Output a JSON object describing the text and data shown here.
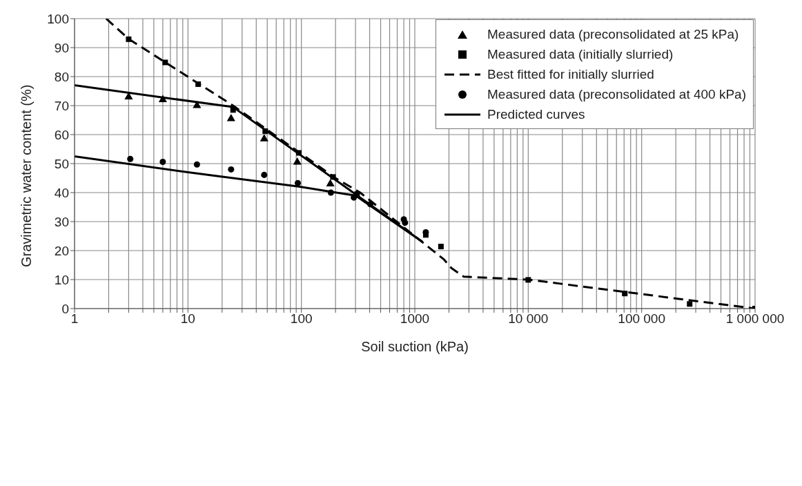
{
  "chart_data": {
    "type": "scatter",
    "xlabel": "Soil suction (kPa)",
    "ylabel": "Gravimetric water content (%)",
    "log": "x",
    "xlim": [
      1,
      1000000
    ],
    "ylim": [
      0,
      100
    ],
    "xticks": [
      1,
      {
        "value": 2,
        "label": null
      },
      {
        "value": 3,
        "label": null
      },
      {
        "value": 4,
        "label": null
      },
      {
        "value": 5,
        "label": null
      },
      {
        "value": 6,
        "label": null
      },
      {
        "value": 7,
        "label": null
      },
      {
        "value": 8,
        "label": null
      },
      {
        "value": 9,
        "label": null
      },
      10,
      {
        "value": 20,
        "label": null
      },
      {
        "value": 30,
        "label": null
      },
      {
        "value": 40,
        "label": null
      },
      {
        "value": 50,
        "label": null
      },
      {
        "value": 60,
        "label": null
      },
      {
        "value": 70,
        "label": null
      },
      {
        "value": 80,
        "label": null
      },
      {
        "value": 90,
        "label": null
      },
      100,
      {
        "value": 200,
        "label": null
      },
      {
        "value": 300,
        "label": null
      },
      {
        "value": 400,
        "label": null
      },
      {
        "value": 500,
        "label": null
      },
      {
        "value": 600,
        "label": null
      },
      {
        "value": 700,
        "label": null
      },
      {
        "value": 800,
        "label": null
      },
      {
        "value": 900,
        "label": null
      },
      1000,
      {
        "value": 2000,
        "label": null
      },
      {
        "value": 3000,
        "label": null
      },
      {
        "value": 4000,
        "label": null
      },
      {
        "value": 5000,
        "label": null
      },
      {
        "value": 6000,
        "label": null
      },
      {
        "value": 7000,
        "label": null
      },
      {
        "value": 8000,
        "label": null
      },
      {
        "value": 9000,
        "label": null
      },
      {
        "value": 10000,
        "label": "10 000"
      },
      {
        "value": 20000,
        "label": null
      },
      {
        "value": 30000,
        "label": null
      },
      {
        "value": 40000,
        "label": null
      },
      {
        "value": 50000,
        "label": null
      },
      {
        "value": 60000,
        "label": null
      },
      {
        "value": 70000,
        "label": null
      },
      {
        "value": 80000,
        "label": null
      },
      {
        "value": 90000,
        "label": null
      },
      {
        "value": 100000,
        "label": "100 000"
      },
      {
        "value": 200000,
        "label": null
      },
      {
        "value": 300000,
        "label": null
      },
      {
        "value": 400000,
        "label": null
      },
      {
        "value": 500000,
        "label": null
      },
      {
        "value": 600000,
        "label": null
      },
      {
        "value": 700000,
        "label": null
      },
      {
        "value": 800000,
        "label": null
      },
      {
        "value": 900000,
        "label": null
      },
      {
        "value": 1000000,
        "label": "1 000 000"
      }
    ],
    "yticks": [
      0,
      10,
      20,
      30,
      40,
      50,
      60,
      70,
      80,
      90,
      100
    ],
    "grid": true,
    "legend": "top right",
    "series": [
      {
        "marker": "triangle",
        "name": "Measured data (preconsolidated at 25 kPa)",
        "color": "#000000",
        "x": [
          3,
          6,
          12,
          24,
          47,
          92,
          180
        ],
        "values": [
          73,
          72,
          70,
          65.5,
          58.5,
          50.5,
          43
        ]
      },
      {
        "marker": "square",
        "name": "Measured data (initially slurried)",
        "color": "#000000",
        "x": [
          3,
          6.3,
          12.3,
          25,
          48,
          95,
          190,
          310,
          1250,
          1700,
          10000,
          71000,
          265000,
          1000000
        ],
        "values": [
          92.9,
          84.9,
          77.4,
          68.5,
          61.2,
          53.7,
          45.4,
          39.5,
          25.4,
          21.4,
          9.9,
          5.2,
          1.6,
          0
        ]
      },
      {
        "type": "line",
        "line_style": "dashed",
        "name": "Best fitted for initially slurried",
        "color": "#000000",
        "x": [
          1.9,
          3,
          25,
          200,
          330,
          1000,
          1800,
          2100,
          2700,
          10000,
          100000,
          1000000
        ],
        "values": [
          100,
          93,
          70,
          45,
          40,
          25,
          17,
          14,
          11,
          10,
          5,
          0
        ]
      },
      {
        "marker": "circle",
        "name": "Measured data (preconsolidated at 400 kPa)",
        "color": "#000000",
        "x": [
          3.1,
          6,
          12,
          24,
          47,
          93,
          182,
          290,
          405,
          800,
          820,
          1250
        ],
        "values": [
          51.6,
          50.6,
          49.7,
          48,
          46.1,
          43.3,
          40,
          38.3,
          36,
          30.8,
          29.6,
          26.3
        ]
      },
      {
        "type": "line",
        "line_style": "solid",
        "name": "Predicted curves",
        "color": "#000000",
        "x": [
          1,
          25,
          1170
        ],
        "values": [
          77,
          69.5,
          23
        ]
      },
      {
        "type": "line",
        "line_style": "solid",
        "color": "#000000",
        "x": [
          1,
          10,
          95,
          182,
          300,
          1170
        ],
        "values": [
          52.5,
          47,
          42.1,
          40.3,
          39,
          23
        ]
      }
    ]
  }
}
